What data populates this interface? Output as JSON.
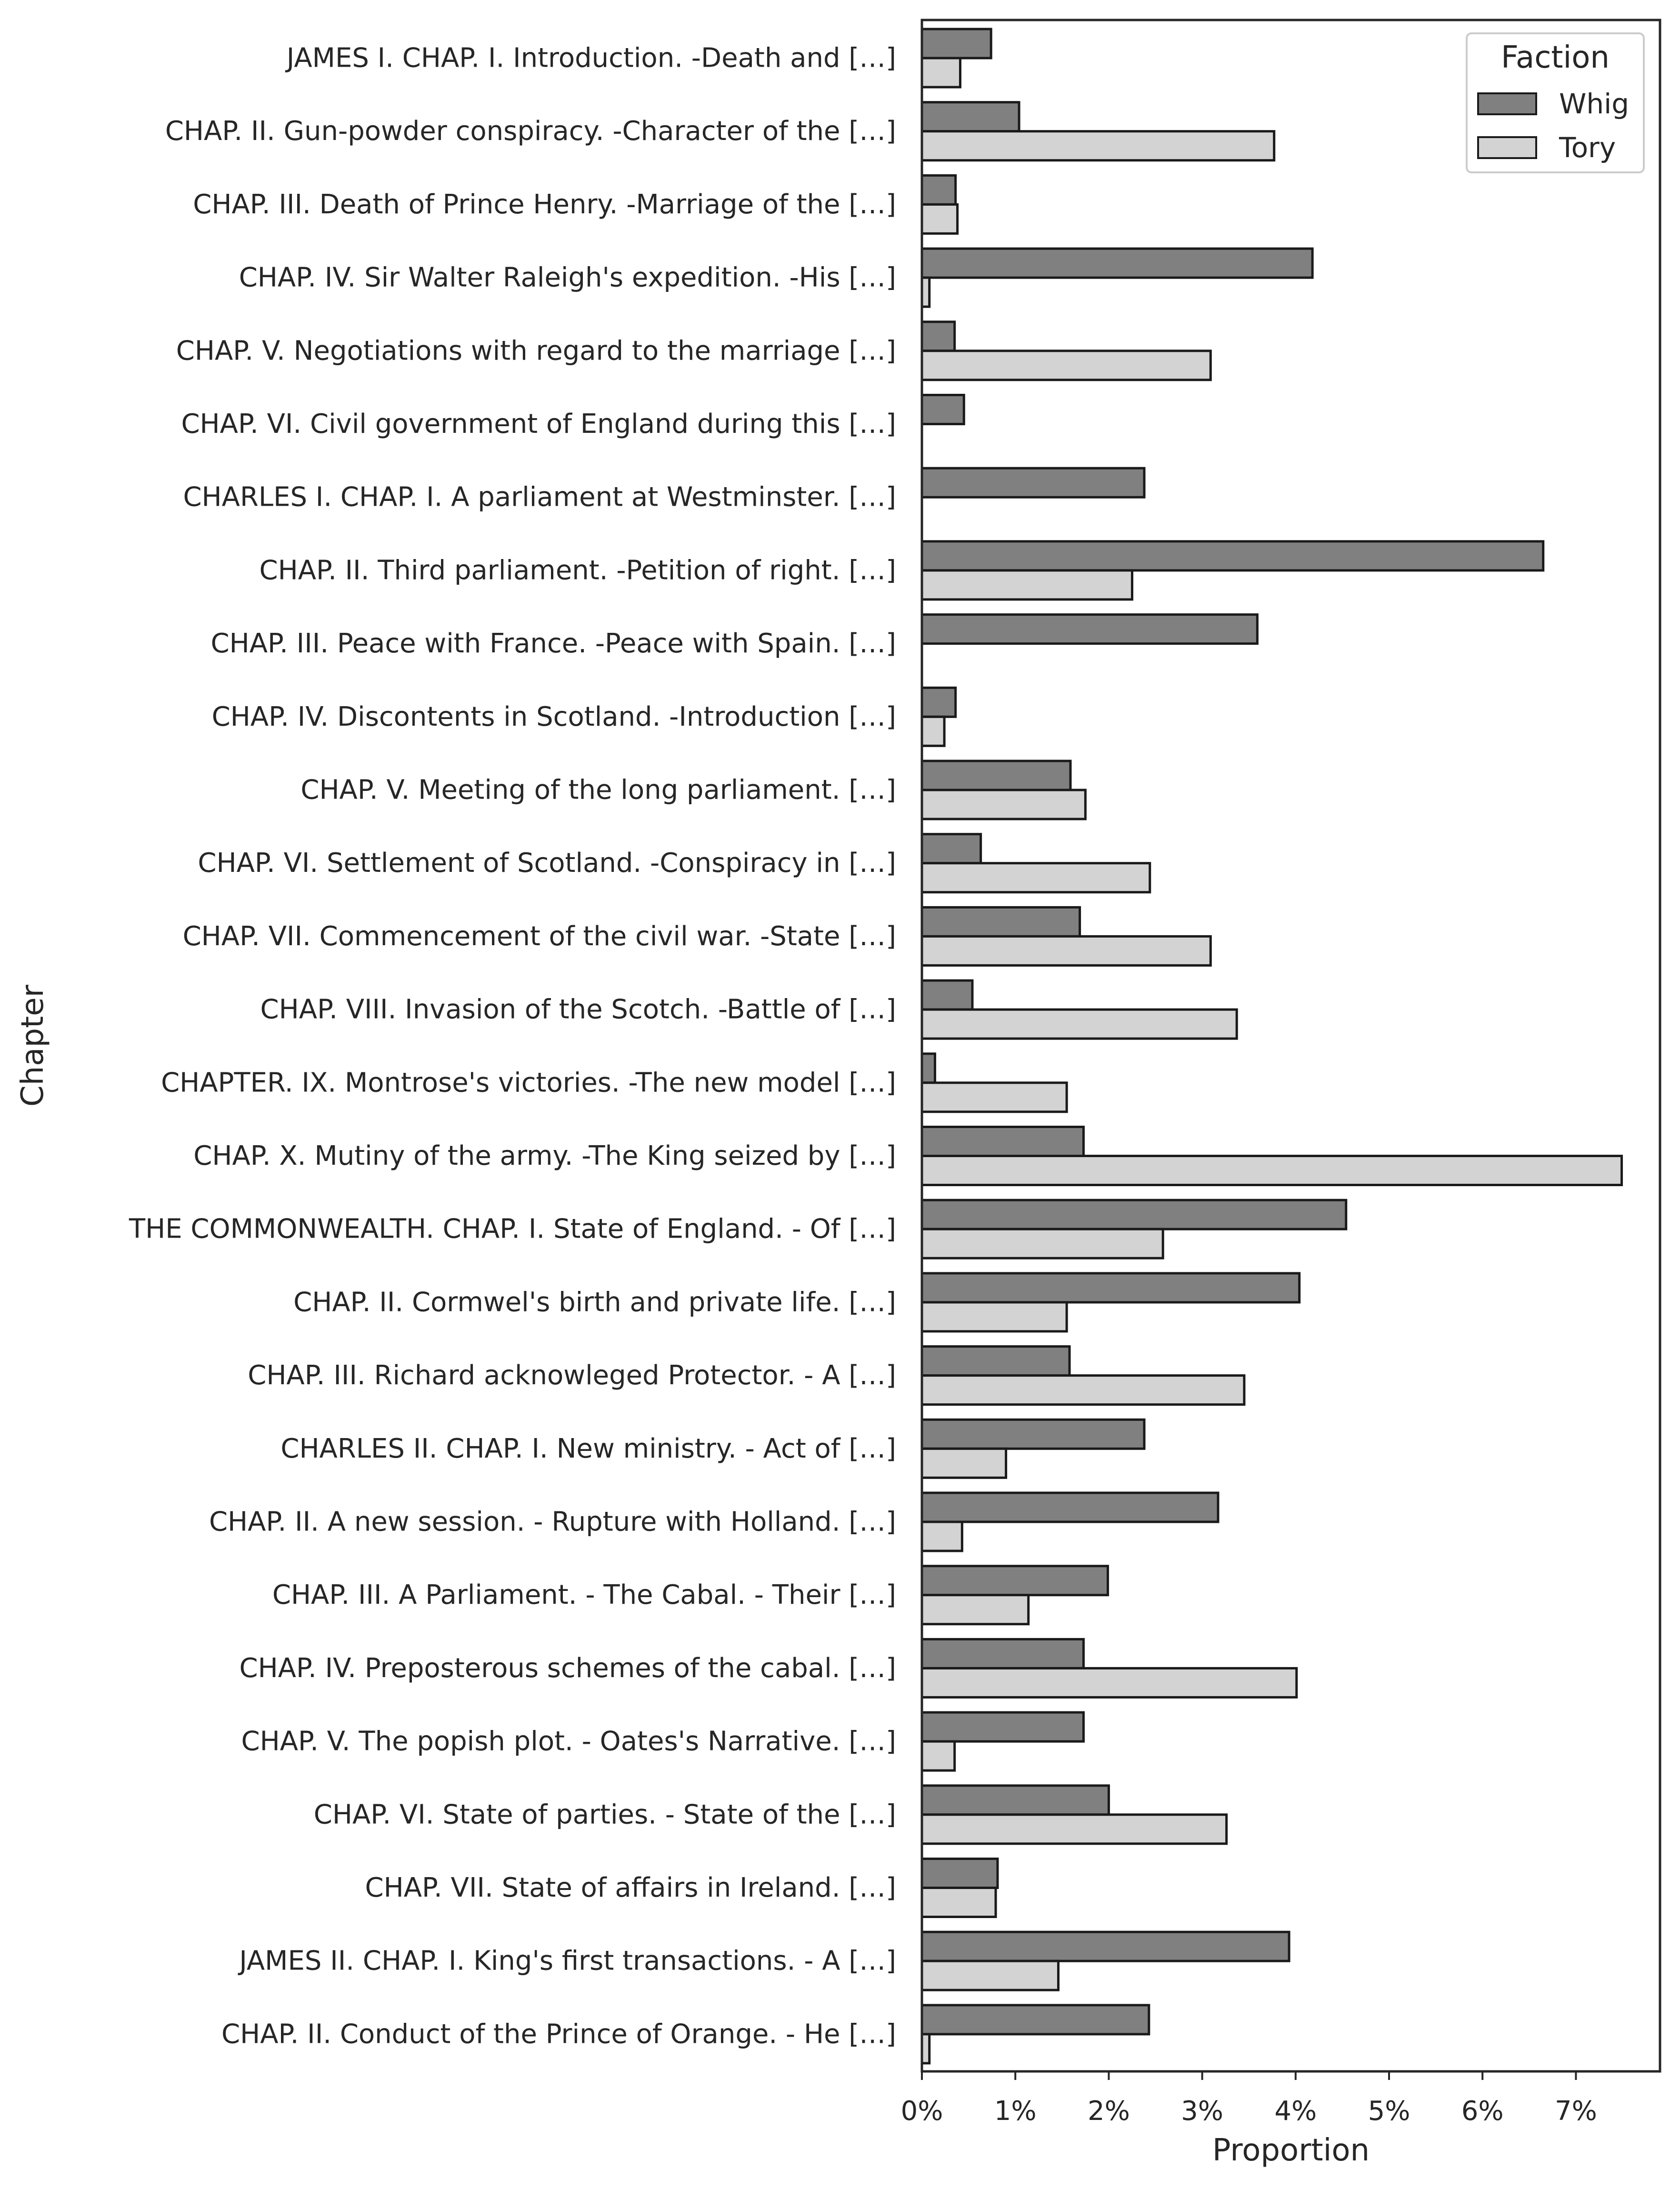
{
  "chart_data": {
    "type": "bar",
    "orientation": "horizontal",
    "title": "",
    "xlabel": "Proportion",
    "ylabel": "Chapter",
    "xlim": [
      0,
      0.079
    ],
    "x_ticks": [
      0,
      0.01,
      0.02,
      0.03,
      0.04,
      0.05,
      0.06,
      0.07
    ],
    "x_tick_labels": [
      "0%",
      "1%",
      "2%",
      "3%",
      "4%",
      "5%",
      "6%",
      "7%"
    ],
    "grid": false,
    "legend": {
      "title": "Faction",
      "position": "top-right",
      "entries": [
        "Whig",
        "Tory"
      ]
    },
    "colors": {
      "Whig": "#808080",
      "Tory": "#d3d3d3",
      "edge": "#1a1a1a"
    },
    "categories": [
      "JAMES I. CHAP. I. Introduction. -Death and […]",
      "CHAP. II. Gun-powder conspiracy. -Character of the […]",
      "CHAP. III. Death of Prince Henry. -Marriage of the […]",
      "CHAP. IV. Sir Walter Raleigh's expedition. -His […]",
      "CHAP. V. Negotiations with regard to the marriage […]",
      "CHAP. VI. Civil government of England during this […]",
      "CHARLES I. CHAP. I. A parliament at Westminster. […]",
      "CHAP. II. Third parliament. -Petition of right. […]",
      "CHAP. III. Peace with France. -Peace with Spain. […]",
      "CHAP. IV. Discontents in Scotland. -Introduction […]",
      "CHAP. V. Meeting of the long parliament. […]",
      "CHAP. VI. Settlement of Scotland. -Conspiracy in […]",
      "CHAP. VII. Commencement of the civil war. -State […]",
      "CHAP. VIII. Invasion of the Scotch. -Battle of […]",
      "CHAPTER. IX. Montrose's victories. -The new model […]",
      "CHAP. X. Mutiny of the army. -The King seized by […]",
      "THE COMMONWEALTH. CHAP. I. State of England. - Of […]",
      "CHAP. II. Cormwel's birth and private life. […]",
      "CHAP. III. Richard acknowleged Protector. - A […]",
      "CHARLES II. CHAP. I. New ministry. - Act of […]",
      "CHAP. II. A new session. - Rupture with Holland. […]",
      "CHAP. III. A Parliament. - The Cabal. - Their […]",
      "CHAP. IV. Preposterous schemes of the cabal. […]",
      "CHAP. V. The popish plot. - Oates's Narrative. […]",
      "CHAP. VI. State of parties. - State of the […]",
      "CHAP. VII. State of affairs in Ireland. […]",
      "JAMES II. CHAP. I. King's first transactions. - A […]",
      "CHAP. II. Conduct of the Prince of Orange. - He […]"
    ],
    "series": [
      {
        "name": "Whig",
        "values": [
          0.0074,
          0.0104,
          0.0036,
          0.0418,
          0.0035,
          0.0045,
          0.0238,
          0.0665,
          0.0359,
          0.0036,
          0.0159,
          0.0063,
          0.0169,
          0.0054,
          0.0014,
          0.0173,
          0.0454,
          0.0404,
          0.0158,
          0.0238,
          0.0317,
          0.0199,
          0.0173,
          0.0173,
          0.02,
          0.0081,
          0.0393,
          0.0243
        ]
      },
      {
        "name": "Tory",
        "values": [
          0.0041,
          0.0377,
          0.0038,
          0.0008,
          0.0309,
          0.0,
          0.0,
          0.0225,
          0.0,
          0.0024,
          0.0175,
          0.0244,
          0.0309,
          0.0337,
          0.0155,
          0.0749,
          0.0258,
          0.0155,
          0.0345,
          0.009,
          0.0043,
          0.0114,
          0.0401,
          0.0035,
          0.0326,
          0.0079,
          0.0146,
          0.0008
        ]
      }
    ]
  }
}
